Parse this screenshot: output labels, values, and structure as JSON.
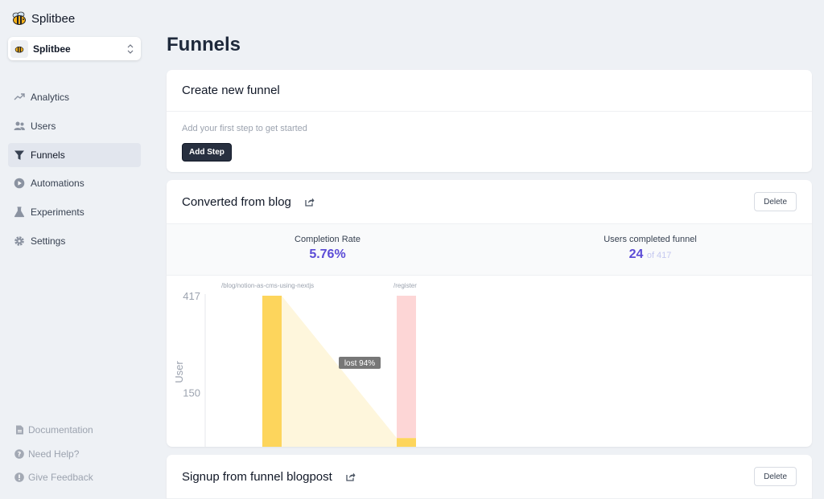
{
  "app": {
    "name": "Splitbee"
  },
  "project": {
    "name": "Splitbee"
  },
  "nav": [
    {
      "label": "Analytics",
      "icon": "trending-up-icon",
      "active": false
    },
    {
      "label": "Users",
      "icon": "users-icon",
      "active": false
    },
    {
      "label": "Funnels",
      "icon": "funnel-icon",
      "active": true
    },
    {
      "label": "Automations",
      "icon": "play-circle-icon",
      "active": false
    },
    {
      "label": "Experiments",
      "icon": "flask-icon",
      "active": false
    },
    {
      "label": "Settings",
      "icon": "gear-icon",
      "active": false
    }
  ],
  "footer": [
    {
      "label": "Documentation",
      "icon": "document-icon"
    },
    {
      "label": "Need Help?",
      "icon": "question-circle-icon"
    },
    {
      "label": "Give Feedback",
      "icon": "exclamation-circle-icon"
    }
  ],
  "page": {
    "title": "Funnels"
  },
  "create": {
    "title": "Create new funnel",
    "hint": "Add your first step to get started",
    "button": "Add Step"
  },
  "funnels": [
    {
      "title": "Converted from blog",
      "delete_label": "Delete",
      "completion_label": "Completion Rate",
      "completion_value": "5.76%",
      "users_label": "Users completed funnel",
      "users_completed": "24",
      "users_of": "of 417"
    },
    {
      "title": "Signup from funnel blogpost",
      "delete_label": "Delete"
    }
  ],
  "chart_data": {
    "type": "bar",
    "ylabel": "User",
    "yticks": [
      417,
      150
    ],
    "ylim": [
      0,
      417
    ],
    "categories": [
      "/blog/notion-as-cms-using-nextjs",
      "/register"
    ],
    "values": [
      417,
      24
    ],
    "dropoff_label": "lost 94%",
    "colors": {
      "bar": "#fdd55c",
      "lost": "#fdd6d6",
      "area": "#fef6dc",
      "label_bg": "#777777"
    }
  },
  "colors": {
    "accent": "#5b4bd6",
    "button_dark": "#283040"
  }
}
